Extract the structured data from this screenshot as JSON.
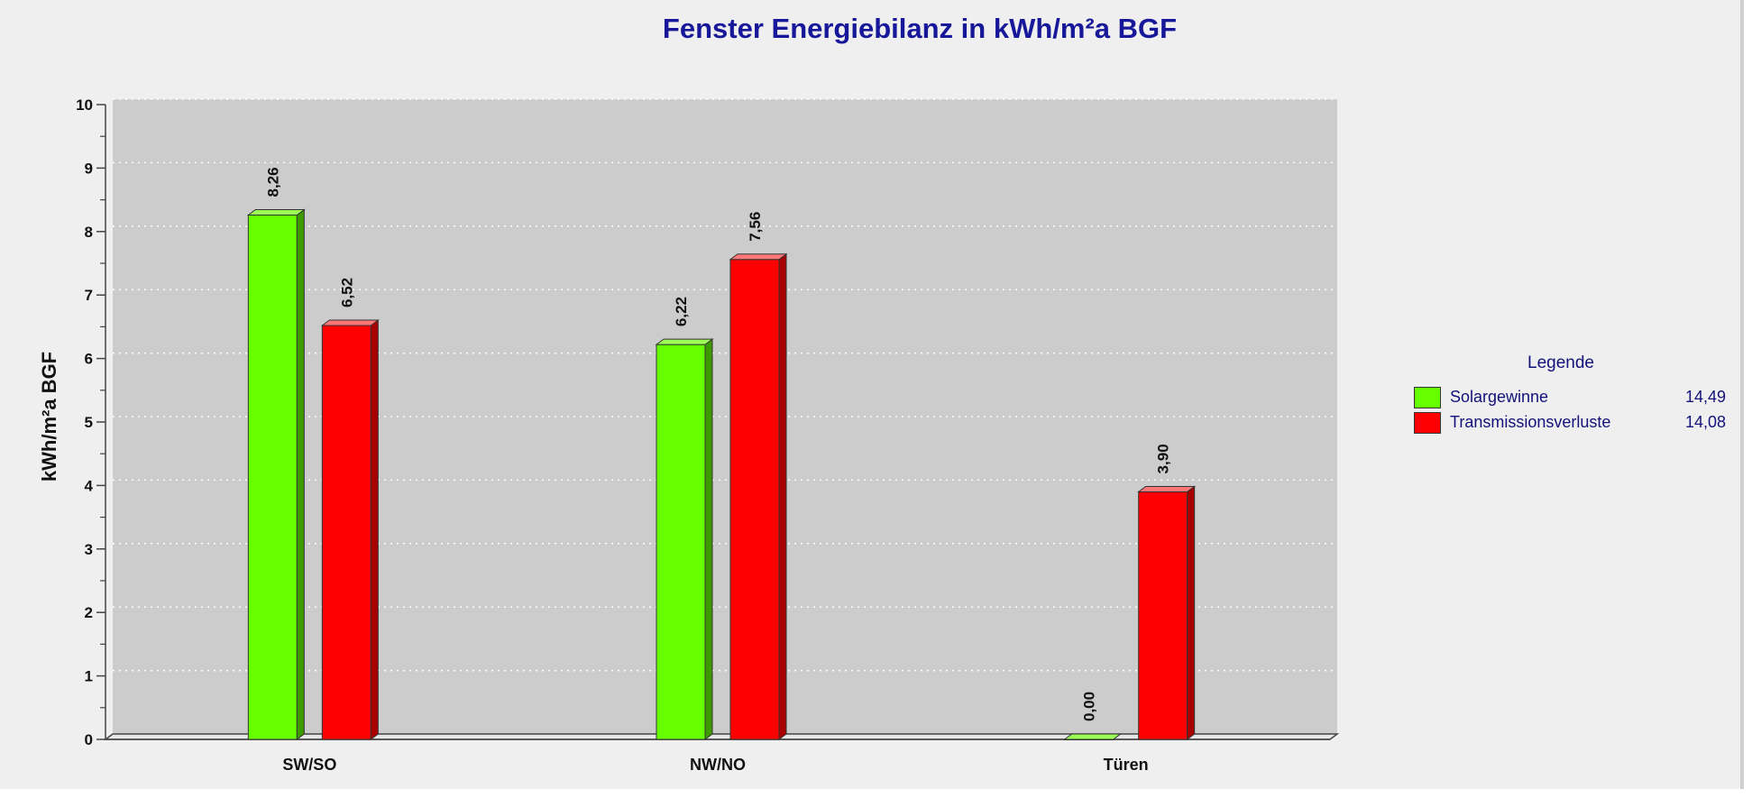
{
  "chart_data": {
    "type": "bar",
    "title": "Fenster Energiebilanz in kWh/m²a BGF",
    "xlabel": "",
    "ylabel": "kWh/m²a BGF",
    "ylim": [
      0,
      10
    ],
    "yticks": [
      "0",
      "1",
      "2",
      "3",
      "4",
      "5",
      "6",
      "7",
      "8",
      "9",
      "10"
    ],
    "grid": true,
    "legend_position": "right",
    "legend_title": "Legende",
    "categories": [
      "SW/SO",
      "NW/NO",
      "Türen"
    ],
    "series": [
      {
        "name": "Solargewinne",
        "color": "#66ff00",
        "values": [
          8.26,
          6.22,
          0.0
        ],
        "value_labels": [
          "8,26",
          "6,22",
          "0,00"
        ],
        "total": "14,49"
      },
      {
        "name": "Transmissionsverluste",
        "color": "#ff0000",
        "values": [
          6.52,
          7.56,
          3.9
        ],
        "value_labels": [
          "6,52",
          "7,56",
          "3,90"
        ],
        "total": "14,08"
      }
    ]
  }
}
